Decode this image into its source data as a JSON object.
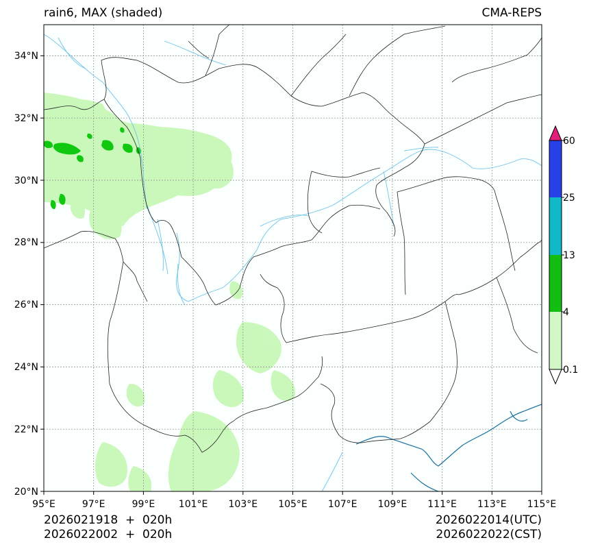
{
  "header": {
    "title_left": "rain6, MAX (shaded)",
    "title_right": "CMA-REPS"
  },
  "footer": {
    "left_line1": "2026021918  +  020h",
    "left_line2": "2026022002  +  020h",
    "right_line1": "2026022014(UTC)",
    "right_line2": "2026022022(CST)"
  },
  "map": {
    "lon_range": [
      95,
      115
    ],
    "lat_range": [
      20,
      35
    ],
    "lon_ticks": [
      "95°E",
      "97°E",
      "99°E",
      "101°E",
      "103°E",
      "105°E",
      "107°E",
      "109°E",
      "111°E",
      "113°E",
      "115°E"
    ],
    "lat_ticks": [
      "20°N",
      "22°N",
      "24°N",
      "26°N",
      "28°N",
      "30°N",
      "32°N",
      "34°N"
    ],
    "colors": {
      "background": "#fbfffe",
      "light_rain": "#c8f8b8",
      "moderate_rain": "#10c810",
      "river": "#6fc3ea",
      "border": "#222222",
      "grid": "#888888"
    }
  },
  "colorbar": {
    "labels": [
      "0.1",
      "4",
      "13",
      "25",
      "60"
    ],
    "colors": [
      "#ffffff",
      "#d2f8c8",
      "#12be12",
      "#10b8c8",
      "#2840e8",
      "#e0207a"
    ]
  }
}
